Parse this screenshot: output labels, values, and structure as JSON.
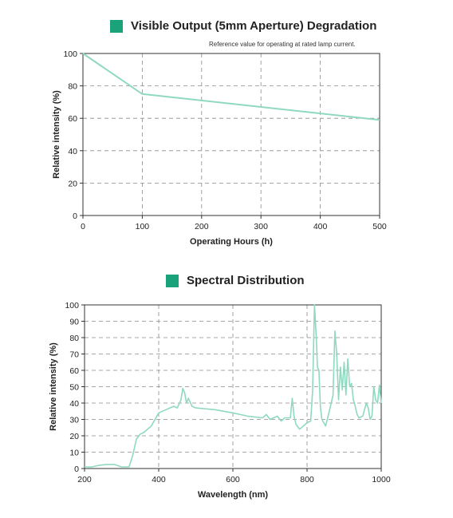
{
  "colors": {
    "accent": "#1aa37a",
    "line": "#8fd9c0"
  },
  "chart_data": [
    {
      "type": "line",
      "title": "Visible Output (5mm Aperture) Degradation",
      "annotation": "Reference value for operating at rated lamp current.",
      "xlabel": "Operating Hours (h)",
      "ylabel": "Relative intensity (%)",
      "xlim": [
        0,
        500
      ],
      "ylim": [
        0,
        100
      ],
      "x_ticks": [
        "0",
        "100",
        "200",
        "300",
        "400",
        "500"
      ],
      "y_ticks": [
        "0",
        "20",
        "40",
        "60",
        "80",
        "100"
      ],
      "grid": "dashed",
      "series": [
        {
          "x": [
            0,
            100,
            500
          ],
          "y": [
            100,
            75,
            59
          ]
        }
      ]
    },
    {
      "type": "line",
      "title": "Spectral Distribution",
      "xlabel": "Wavelength (nm)",
      "ylabel": "Relative intensity (%)",
      "xlim": [
        200,
        1000
      ],
      "ylim": [
        0,
        100
      ],
      "x_ticks": [
        "200",
        "400",
        "600",
        "800",
        "1000"
      ],
      "y_ticks": [
        "0",
        "10",
        "20",
        "30",
        "40",
        "50",
        "60",
        "70",
        "80",
        "90",
        "100"
      ],
      "grid": "dashed",
      "series": [
        {
          "x": [
            200,
            220,
            240,
            260,
            280,
            300,
            320,
            330,
            340,
            350,
            360,
            380,
            400,
            420,
            440,
            450,
            460,
            465,
            470,
            475,
            480,
            490,
            500,
            550,
            600,
            640,
            680,
            690,
            700,
            720,
            730,
            740,
            755,
            760,
            765,
            770,
            780,
            790,
            800,
            810,
            815,
            820,
            825,
            828,
            832,
            836,
            840,
            850,
            860,
            870,
            875,
            880,
            885,
            890,
            895,
            900,
            905,
            910,
            915,
            920,
            925,
            930,
            935,
            940,
            950,
            960,
            965,
            970,
            975,
            980,
            985,
            990,
            995,
            1000
          ],
          "y": [
            1,
            1,
            2,
            2.5,
            2.5,
            1,
            1,
            8,
            18,
            21,
            22,
            26,
            34,
            36,
            38,
            37,
            42,
            49,
            46,
            40,
            43,
            38,
            37,
            36,
            34,
            32,
            31,
            33,
            30,
            32,
            29,
            31,
            31,
            43,
            32,
            27,
            24,
            26,
            28,
            29,
            48,
            100,
            80,
            62,
            60,
            38,
            30,
            26,
            35,
            45,
            84,
            70,
            42,
            62,
            48,
            65,
            45,
            67,
            50,
            52,
            42,
            38,
            33,
            31,
            32,
            40,
            37,
            30,
            32,
            50,
            42,
            40,
            51,
            40
          ]
        }
      ]
    }
  ]
}
